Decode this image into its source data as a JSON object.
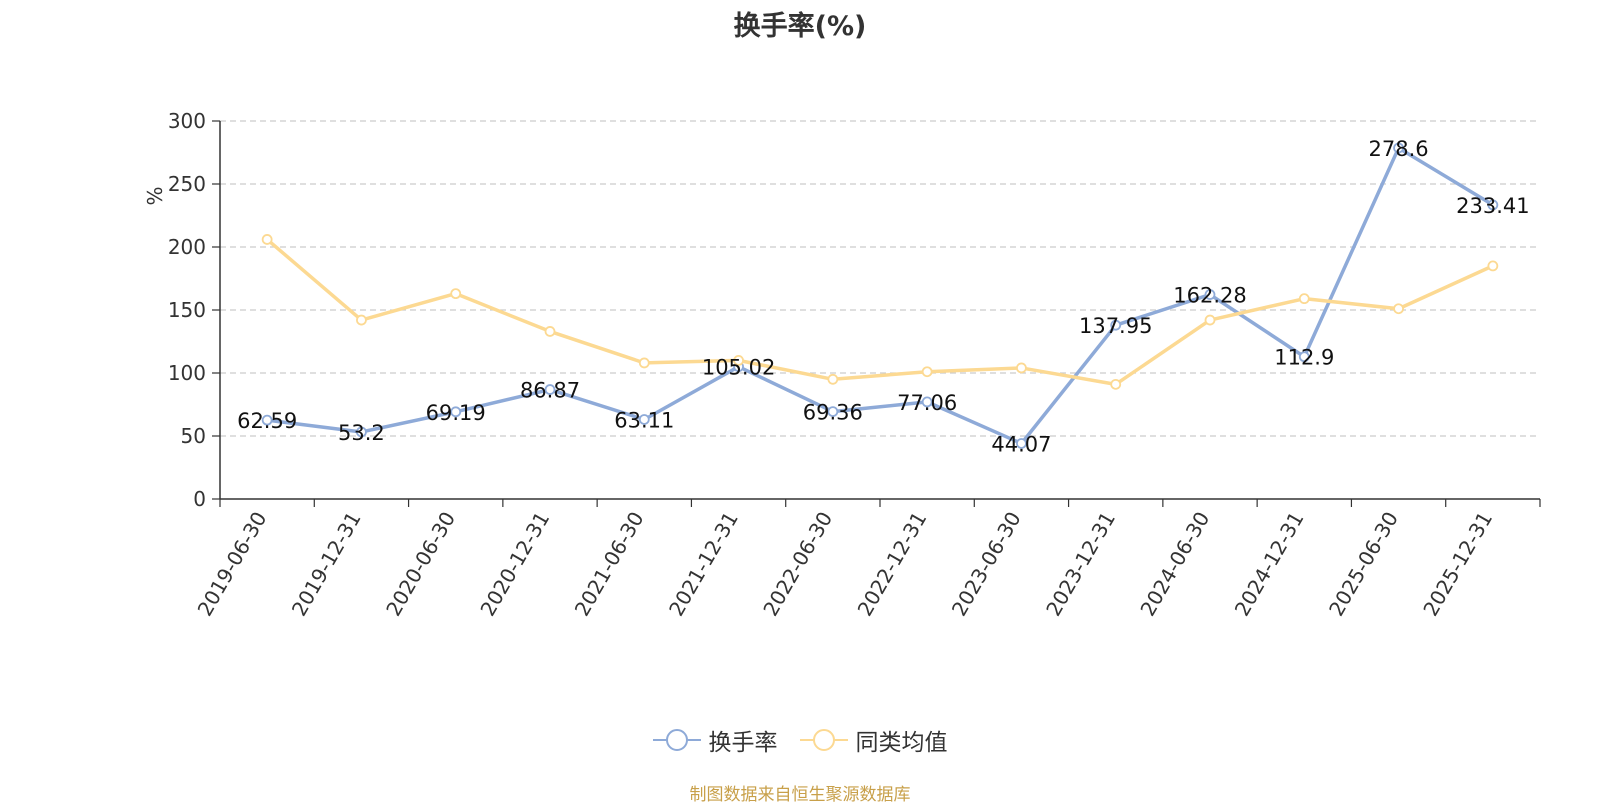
{
  "title": "换手率(%)",
  "source_note": "制图数据来自恒生聚源数据库",
  "colors": {
    "series1": "#8eaad8",
    "series2": "#fcd992",
    "unit": "#e5383b",
    "source": "#c8a04a",
    "grid": "#cccccc",
    "axis": "#333333"
  },
  "chart_data": {
    "type": "line",
    "title": "换手率(%)",
    "ylabel": "%",
    "xlabel": "",
    "ylim": [
      0,
      300
    ],
    "yticks": [
      0,
      50,
      100,
      150,
      200,
      250,
      300
    ],
    "grid": true,
    "legend_position": "bottom",
    "categories": [
      "2019-06-30",
      "2019-12-31",
      "2020-06-30",
      "2020-12-31",
      "2021-06-30",
      "2021-12-31",
      "2022-06-30",
      "2022-12-31",
      "2023-06-30",
      "2023-12-31",
      "2024-06-30",
      "2024-12-31",
      "2025-06-30",
      "2025-12-31"
    ],
    "series": [
      {
        "name": "换手率",
        "color": "#8eaad8",
        "show_labels": true,
        "values": [
          62.59,
          53.2,
          69.19,
          86.87,
          63.11,
          105.02,
          69.36,
          77.06,
          44.07,
          137.95,
          162.28,
          112.9,
          278.6,
          233.41
        ]
      },
      {
        "name": "同类均值",
        "color": "#fcd992",
        "show_labels": false,
        "values": [
          206,
          142,
          163,
          133,
          108,
          110,
          95,
          101,
          104,
          91,
          142,
          159,
          151,
          185
        ]
      }
    ]
  }
}
